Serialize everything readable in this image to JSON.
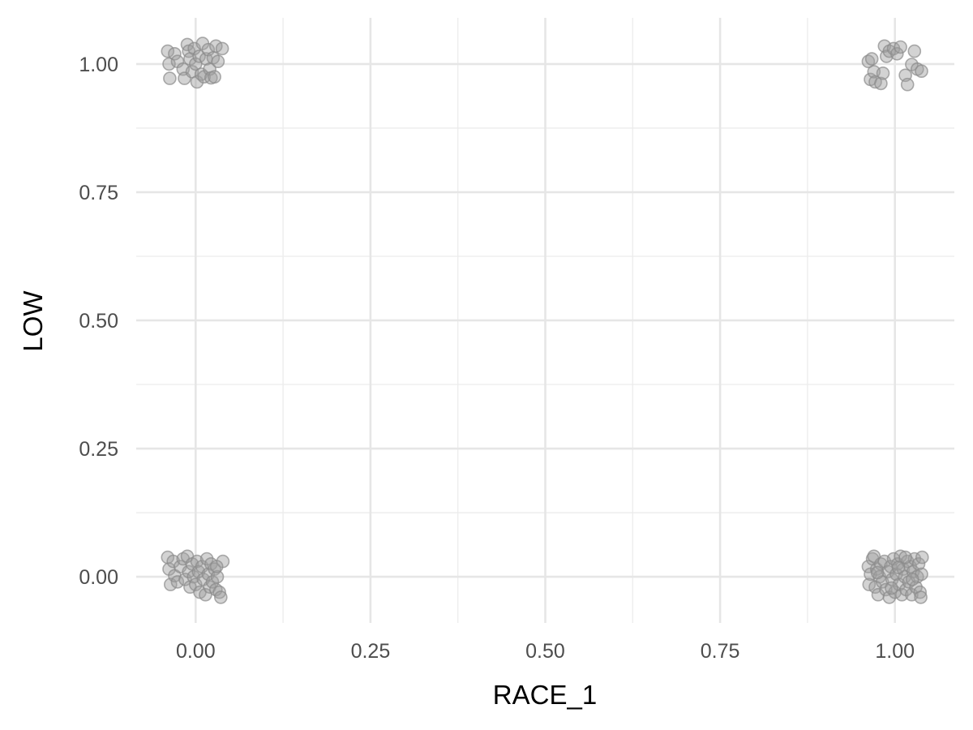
{
  "chart_data": {
    "type": "scatter",
    "title": "",
    "xlabel": "RACE_1",
    "ylabel": "LOW",
    "xlim": [
      -0.085,
      1.085
    ],
    "ylim": [
      -0.09,
      1.09
    ],
    "grid": true,
    "jitter": true,
    "x_ticks": [
      "0.00",
      "0.25",
      "0.50",
      "0.75",
      "1.00"
    ],
    "y_ticks": [
      "0.00",
      "0.25",
      "0.50",
      "0.75",
      "1.00"
    ],
    "marker_color": "#9e9e9e",
    "points": [
      [
        -0.04,
        1.025
      ],
      [
        -0.038,
        1.0
      ],
      [
        -0.037,
        0.972
      ],
      [
        -0.03,
        1.02
      ],
      [
        -0.026,
        1.005
      ],
      [
        -0.018,
        0.99
      ],
      [
        -0.016,
        0.972
      ],
      [
        -0.012,
        1.038
      ],
      [
        -0.01,
        1.025
      ],
      [
        -0.008,
        1.01
      ],
      [
        -0.005,
        0.985
      ],
      [
        -0.002,
        1.03
      ],
      [
        0.0,
        1.0
      ],
      [
        0.002,
        0.965
      ],
      [
        0.005,
        1.015
      ],
      [
        0.008,
        0.98
      ],
      [
        0.01,
        1.04
      ],
      [
        0.012,
        0.975
      ],
      [
        0.015,
        1.01
      ],
      [
        0.018,
        1.028
      ],
      [
        0.02,
        0.99
      ],
      [
        0.022,
        0.973
      ],
      [
        0.025,
        1.012
      ],
      [
        0.027,
        0.975
      ],
      [
        0.029,
        1.035
      ],
      [
        0.032,
        1.005
      ],
      [
        0.038,
        1.03
      ],
      [
        0.962,
        1.005
      ],
      [
        0.965,
        0.97
      ],
      [
        0.967,
        1.01
      ],
      [
        0.97,
        0.985
      ],
      [
        0.972,
        0.965
      ],
      [
        0.98,
        0.962
      ],
      [
        0.983,
        0.982
      ],
      [
        0.985,
        1.035
      ],
      [
        0.988,
        1.015
      ],
      [
        0.992,
        1.025
      ],
      [
        0.998,
        1.03
      ],
      [
        1.003,
        1.02
      ],
      [
        1.008,
        1.033
      ],
      [
        1.015,
        0.978
      ],
      [
        1.018,
        0.96
      ],
      [
        1.024,
        0.999
      ],
      [
        1.028,
        1.025
      ],
      [
        1.032,
        0.99
      ],
      [
        1.038,
        0.986
      ],
      [
        -0.04,
        0.038
      ],
      [
        -0.038,
        0.015
      ],
      [
        -0.036,
        -0.015
      ],
      [
        -0.032,
        0.03
      ],
      [
        -0.03,
        0.002
      ],
      [
        -0.026,
        -0.01
      ],
      [
        -0.022,
        0.02
      ],
      [
        -0.018,
        0.035
      ],
      [
        -0.015,
        -0.005
      ],
      [
        -0.012,
        0.04
      ],
      [
        -0.01,
        0.01
      ],
      [
        -0.008,
        -0.02
      ],
      [
        -0.005,
        0.025
      ],
      [
        -0.003,
        0.0
      ],
      [
        0.0,
        -0.015
      ],
      [
        0.002,
        0.03
      ],
      [
        0.004,
        0.01
      ],
      [
        0.006,
        -0.03
      ],
      [
        0.009,
        0.02
      ],
      [
        0.011,
        -0.005
      ],
      [
        0.014,
        -0.035
      ],
      [
        0.016,
        0.035
      ],
      [
        0.018,
        0.005
      ],
      [
        0.02,
        -0.02
      ],
      [
        0.022,
        0.025
      ],
      [
        0.024,
        -0.01
      ],
      [
        0.027,
        0.015
      ],
      [
        0.029,
        -0.025
      ],
      [
        0.031,
        0.0
      ],
      [
        0.034,
        -0.03
      ],
      [
        0.036,
        -0.04
      ],
      [
        0.039,
        0.03
      ],
      [
        0.03,
        0.02
      ],
      [
        0.962,
        0.02
      ],
      [
        0.963,
        -0.015
      ],
      [
        0.965,
        0.005
      ],
      [
        0.968,
        0.035
      ],
      [
        0.97,
        0.04
      ],
      [
        0.972,
        -0.02
      ],
      [
        0.974,
        0.015
      ],
      [
        0.976,
        -0.035
      ],
      [
        0.978,
        0.0
      ],
      [
        0.98,
        0.025
      ],
      [
        0.982,
        -0.01
      ],
      [
        0.985,
        0.03
      ],
      [
        0.987,
        -0.025
      ],
      [
        0.99,
        0.01
      ],
      [
        0.992,
        -0.04
      ],
      [
        0.994,
        0.02
      ],
      [
        0.996,
        -0.005
      ],
      [
        0.998,
        0.035
      ],
      [
        1.0,
        -0.03
      ],
      [
        1.002,
        0.005
      ],
      [
        1.004,
        0.025
      ],
      [
        1.006,
        -0.015
      ],
      [
        1.008,
        0.04
      ],
      [
        1.01,
        -0.035
      ],
      [
        1.012,
        0.015
      ],
      [
        1.014,
        0.0
      ],
      [
        1.016,
        -0.025
      ],
      [
        1.018,
        0.03
      ],
      [
        1.02,
        -0.01
      ],
      [
        1.022,
        0.02
      ],
      [
        1.024,
        -0.035
      ],
      [
        1.026,
        0.01
      ],
      [
        1.028,
        0.035
      ],
      [
        1.03,
        -0.02
      ],
      [
        1.032,
        0.0
      ],
      [
        1.034,
        0.025
      ],
      [
        1.036,
        -0.03
      ],
      [
        1.038,
        0.005
      ],
      [
        1.039,
        0.038
      ],
      [
        1.037,
        -0.04
      ],
      [
        1.015,
        0.038
      ],
      [
        0.995,
        -0.022
      ],
      [
        1.005,
        0.018
      ],
      [
        0.975,
        0.008
      ],
      [
        1.025,
        -0.005
      ]
    ]
  }
}
